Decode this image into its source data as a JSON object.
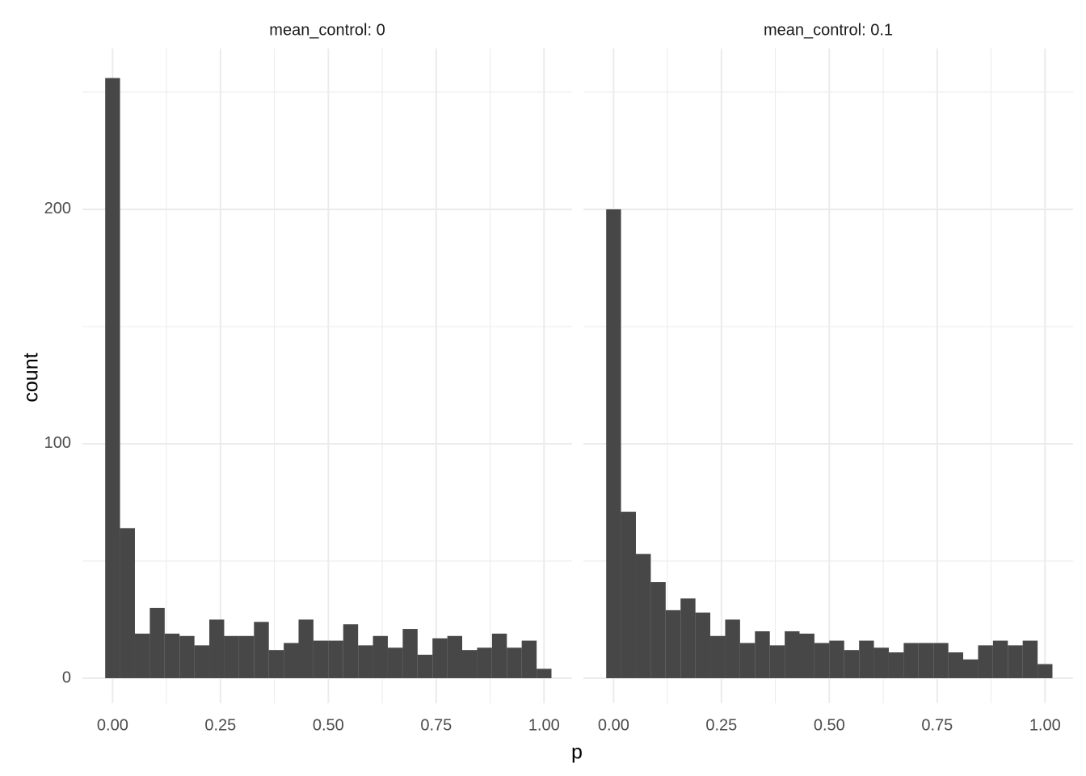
{
  "chart_data": [
    {
      "type": "histogram",
      "title": "mean_control: 0",
      "xlabel": "p",
      "ylabel": "count",
      "bins": [
        -0.0172,
        0.0172,
        0.0517,
        0.0862,
        0.1207,
        0.1552,
        0.1897,
        0.2241,
        0.2586,
        0.2931,
        0.3276,
        0.3621,
        0.3966,
        0.431,
        0.4655,
        0.5,
        0.5345,
        0.569,
        0.6034,
        0.6379,
        0.6724,
        0.7069,
        0.7414,
        0.7759,
        0.8103,
        0.8448,
        0.8793,
        0.9138,
        0.9483,
        0.9828,
        1.0172
      ],
      "counts": [
        256,
        64,
        19,
        30,
        19,
        18,
        14,
        25,
        18,
        18,
        24,
        12,
        15,
        25,
        16,
        16,
        23,
        14,
        18,
        13,
        21,
        10,
        17,
        18,
        12,
        13,
        19,
        13,
        16,
        4
      ],
      "color": "#474747",
      "xlim": [
        -0.07,
        1.065
      ],
      "xticks": [
        {
          "value": 0,
          "label": "0.00"
        },
        {
          "value": 0.25,
          "label": "0.25"
        },
        {
          "value": 0.5,
          "label": "0.50"
        },
        {
          "value": 0.75,
          "label": "0.75"
        },
        {
          "value": 1,
          "label": "1.00"
        }
      ],
      "xminor": [
        0.125,
        0.375,
        0.625,
        0.875
      ],
      "ylim": [
        -10.7,
        268.6
      ],
      "yticks": [
        0,
        100,
        200
      ],
      "yminor": [
        50,
        150,
        250
      ],
      "grid": true
    },
    {
      "type": "histogram",
      "title": "mean_control: 0.1",
      "bins": [
        -0.0172,
        0.0172,
        0.0517,
        0.0862,
        0.1207,
        0.1552,
        0.1897,
        0.2241,
        0.2586,
        0.2931,
        0.3276,
        0.3621,
        0.3966,
        0.431,
        0.4655,
        0.5,
        0.5345,
        0.569,
        0.6034,
        0.6379,
        0.6724,
        0.7069,
        0.7414,
        0.7759,
        0.8103,
        0.8448,
        0.8793,
        0.9138,
        0.9483,
        0.9828,
        1.0172
      ],
      "counts": [
        200,
        71,
        53,
        41,
        29,
        34,
        28,
        18,
        25,
        15,
        20,
        14,
        20,
        19,
        15,
        16,
        12,
        16,
        13,
        11,
        15,
        15,
        15,
        11,
        8,
        14,
        16,
        14,
        16,
        6
      ],
      "color": "#474747",
      "xlim": [
        -0.07,
        1.065
      ],
      "xticks": [
        {
          "value": 0,
          "label": "0.00"
        },
        {
          "value": 0.25,
          "label": "0.25"
        },
        {
          "value": 0.5,
          "label": "0.50"
        },
        {
          "value": 0.75,
          "label": "0.75"
        },
        {
          "value": 1,
          "label": "1.00"
        }
      ],
      "xminor": [
        0.125,
        0.375,
        0.625,
        0.875
      ],
      "ylim": [
        -10.7,
        268.6
      ],
      "yticks": [
        0,
        100,
        200
      ],
      "yminor": [
        50,
        150,
        250
      ],
      "grid": true
    }
  ]
}
